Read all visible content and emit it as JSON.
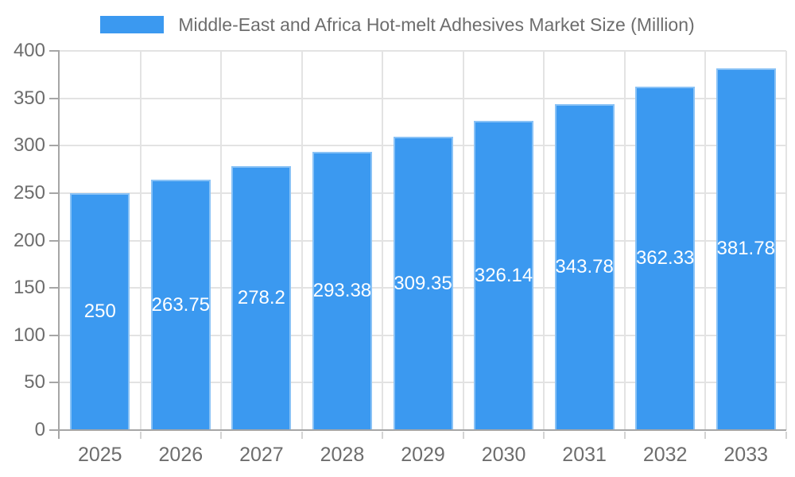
{
  "legend": {
    "label": "Middle-East and Africa Hot-melt Adhesives Market Size (Million)"
  },
  "colors": {
    "bar": "#3B99F0",
    "axis_text": "#6d6d6d",
    "grid": "#e3e3e3",
    "axis_line": "#a6a6a6",
    "boundary_tick": "#d4d4d4",
    "value_label": "#ffffff",
    "background": "#ffffff"
  },
  "chart_data": {
    "type": "bar",
    "title": "",
    "legend_position": "top",
    "grid": true,
    "categories": [
      "2025",
      "2026",
      "2027",
      "2028",
      "2029",
      "2030",
      "2031",
      "2032",
      "2033"
    ],
    "series": [
      {
        "name": "Middle-East and Africa Hot-melt Adhesives Market Size (Million)",
        "values": [
          250,
          263.75,
          278.2,
          293.38,
          309.35,
          326.14,
          343.78,
          362.33,
          381.78
        ]
      }
    ],
    "value_labels": [
      "250",
      "263.75",
      "278.2",
      "293.38",
      "309.35",
      "326.14",
      "343.78",
      "362.33",
      "381.78"
    ],
    "xlabel": "",
    "ylabel": "",
    "ylim": [
      0,
      400
    ],
    "ytick_step": 50,
    "ytick_labels": [
      "0",
      "50",
      "100",
      "150",
      "200",
      "250",
      "300",
      "350",
      "400"
    ]
  }
}
